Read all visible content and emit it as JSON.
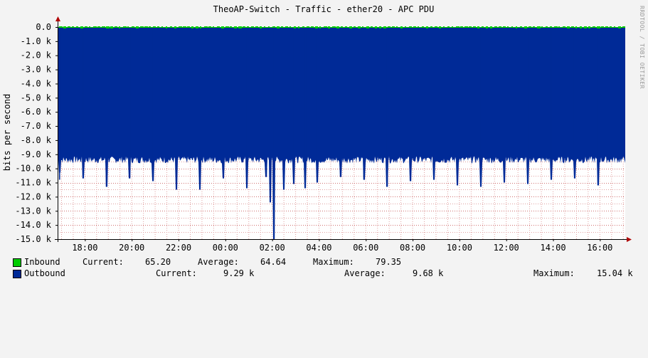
{
  "chart_data": {
    "type": "area",
    "title": "TheoAP-Switch - Traffic - ether20 - APC PDU",
    "ylabel": "bits per second",
    "watermark": "RRDTOOL / TOBI OETIKER",
    "ylim": [
      -15000,
      0
    ],
    "y_ticks": [
      "0.0",
      "-1.0 k",
      "-2.0 k",
      "-3.0 k",
      "-4.0 k",
      "-5.0 k",
      "-6.0 k",
      "-7.0 k",
      "-8.0 k",
      "-9.0 k",
      "-10.0 k",
      "-11.0 k",
      "-12.0 k",
      "-13.0 k",
      "-14.0 k",
      "-15.0 k"
    ],
    "x_ticks": [
      "18:00",
      "20:00",
      "22:00",
      "00:00",
      "02:00",
      "04:00",
      "06:00",
      "08:00",
      "10:00",
      "12:00",
      "14:00",
      "16:00"
    ],
    "grid": true,
    "colors": {
      "background": "#f3f3f3",
      "plot_background": "#ffffff",
      "grid_minor": "#e0a0a0",
      "grid_major": "#d07070",
      "inbound": "#00cc00",
      "outbound": "#002a97",
      "axis": "#000000",
      "arrow": "#b00000"
    },
    "series": [
      {
        "name": "Inbound",
        "color": "#00cc00",
        "note": "tiny values near zero",
        "current": "65.20",
        "average": "64.64",
        "maximum": "79.35"
      },
      {
        "name": "Outbound",
        "color": "#002a97",
        "current": "9.29 k",
        "average": "9.68 k",
        "maximum": "15.04 k",
        "typical_value": -9400,
        "spikes": [
          {
            "t": "16:55",
            "v": -10800
          },
          {
            "t": "17:55",
            "v": -10700
          },
          {
            "t": "18:55",
            "v": -11300
          },
          {
            "t": "19:55",
            "v": -10700
          },
          {
            "t": "20:55",
            "v": -10900
          },
          {
            "t": "21:55",
            "v": -11500
          },
          {
            "t": "22:55",
            "v": -11500
          },
          {
            "t": "23:55",
            "v": -10700
          },
          {
            "t": "00:55",
            "v": -11400
          },
          {
            "t": "01:45",
            "v": -10600
          },
          {
            "t": "01:55",
            "v": -12400
          },
          {
            "t": "02:05",
            "v": -15040
          },
          {
            "t": "02:30",
            "v": -11500
          },
          {
            "t": "02:55",
            "v": -11100
          },
          {
            "t": "03:25",
            "v": -11400
          },
          {
            "t": "03:55",
            "v": -11000
          },
          {
            "t": "04:55",
            "v": -10600
          },
          {
            "t": "05:55",
            "v": -10800
          },
          {
            "t": "06:55",
            "v": -11300
          },
          {
            "t": "07:55",
            "v": -10900
          },
          {
            "t": "08:55",
            "v": -10800
          },
          {
            "t": "09:55",
            "v": -11200
          },
          {
            "t": "10:55",
            "v": -11300
          },
          {
            "t": "11:55",
            "v": -11000
          },
          {
            "t": "12:55",
            "v": -11100
          },
          {
            "t": "13:55",
            "v": -10800
          },
          {
            "t": "14:55",
            "v": -10700
          },
          {
            "t": "15:55",
            "v": -11200
          },
          {
            "t": "16:55",
            "v": -10300
          }
        ]
      }
    ]
  },
  "legend": {
    "inbound": {
      "name": "Inbound",
      "current_label": "Current:",
      "current": "65.20",
      "average_label": "Average:",
      "average": "64.64",
      "maximum_label": "Maximum:",
      "maximum": "79.35"
    },
    "outbound": {
      "name": "Outbound",
      "current_label": "Current:",
      "current": "9.29 k",
      "average_label": "Average:",
      "average": "9.68 k",
      "maximum_label": "Maximum:",
      "maximum": "15.04 k"
    }
  }
}
